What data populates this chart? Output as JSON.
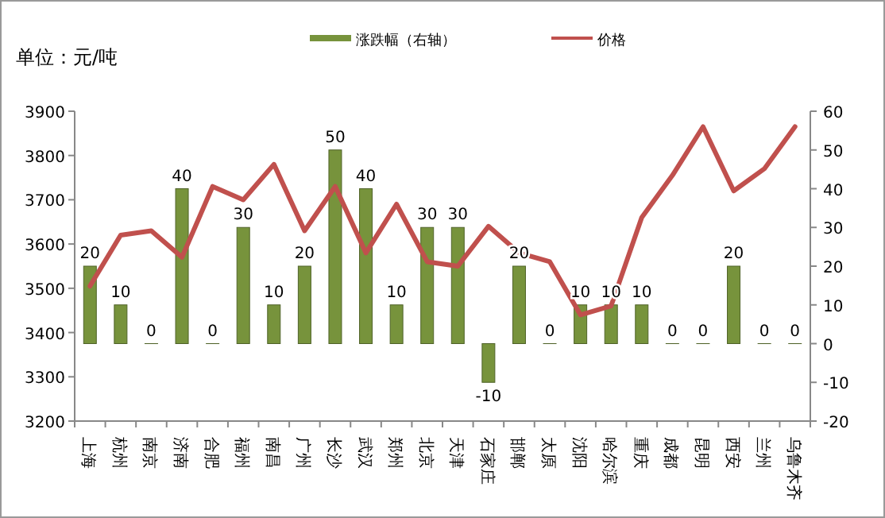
{
  "chart_data": {
    "type": "bar",
    "ylabel": "单位：元/吨",
    "categories": [
      "上海",
      "杭州",
      "南京",
      "济南",
      "合肥",
      "福州",
      "南昌",
      "广州",
      "长沙",
      "武汉",
      "郑州",
      "北京",
      "天津",
      "石家庄",
      "邯郸",
      "太原",
      "沈阳",
      "哈尔滨",
      "重庆",
      "成都",
      "昆明",
      "西安",
      "兰州",
      "乌鲁木齐"
    ],
    "series": [
      {
        "name": "涨跌幅（右轴）",
        "axis": "y2",
        "color": "#77933c",
        "values": [
          20,
          10,
          0,
          40,
          0,
          30,
          10,
          20,
          50,
          40,
          10,
          30,
          30,
          -10,
          20,
          0,
          10,
          10,
          10,
          0,
          0,
          20,
          0,
          0
        ],
        "value_labels": [
          "20",
          "10",
          "0",
          "40",
          "0",
          "30",
          "10",
          "20",
          "50",
          "40",
          "10",
          "30",
          "30",
          "-10",
          "20",
          "0",
          "10",
          "10",
          "10",
          "0",
          "0",
          "20",
          "0",
          "0"
        ]
      },
      {
        "name": "价格",
        "type": "line",
        "color": "#c0504d",
        "values": [
          3505,
          3620,
          3630,
          3570,
          3730,
          3700,
          3780,
          3630,
          3730,
          3580,
          3690,
          3560,
          3550,
          3640,
          3580,
          3560,
          3440,
          3460,
          3660,
          3755,
          3865,
          3720,
          3770,
          3865
        ]
      }
    ],
    "ylim": [
      3200,
      3900
    ],
    "yticks": [
      3200,
      3300,
      3400,
      3500,
      3600,
      3700,
      3800,
      3900
    ],
    "y2lim": [
      -20,
      60
    ],
    "y2ticks": [
      -20,
      -10,
      0,
      10,
      20,
      30,
      40,
      50,
      60
    ],
    "legend": "top"
  }
}
